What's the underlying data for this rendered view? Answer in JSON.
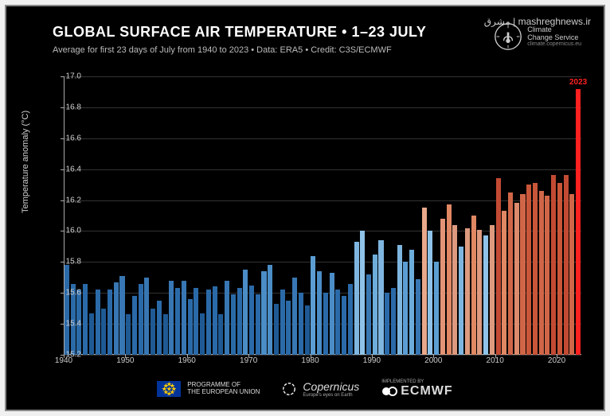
{
  "watermark": "مشرق | mashreghnews.ir",
  "header": {
    "title": "GLOBAL SURFACE AIR TEMPERATURE • 1–23 JULY",
    "subtitle": "Average for first 23 days of July from 1940 to 2023 • Data: ERA5 • Credit: C3S/ECMWF",
    "ccs_line1": "Climate",
    "ccs_line2": "Change Service",
    "ccs_sub": "climate.copernicus.eu"
  },
  "chart": {
    "type": "bar",
    "background_color": "#000000",
    "axis_color": "#aaaaaa",
    "grid_color": "#333333",
    "text_color": "#cccccc",
    "ylabel": "Temperature anomaly (°C)",
    "ylim": [
      15.2,
      17.0
    ],
    "yticks": [
      15.2,
      15.4,
      15.6,
      15.8,
      16.0,
      16.2,
      16.4,
      16.6,
      16.8,
      17.0
    ],
    "xlim": [
      1940,
      2024
    ],
    "xticks": [
      1940,
      1950,
      1960,
      1970,
      1980,
      1990,
      2000,
      2010,
      2020
    ],
    "bar_width_ratio": 0.78,
    "title_fontsize": 18,
    "label_fontsize": 11,
    "tick_fontsize": 10,
    "highlight": {
      "year": 2023,
      "label": "2023",
      "color": "#ff2020"
    },
    "years": [
      1940,
      1941,
      1942,
      1943,
      1944,
      1945,
      1946,
      1947,
      1948,
      1949,
      1950,
      1951,
      1952,
      1953,
      1954,
      1955,
      1956,
      1957,
      1958,
      1959,
      1960,
      1961,
      1962,
      1963,
      1964,
      1965,
      1966,
      1967,
      1968,
      1969,
      1970,
      1971,
      1972,
      1973,
      1974,
      1975,
      1976,
      1977,
      1978,
      1979,
      1980,
      1981,
      1982,
      1983,
      1984,
      1985,
      1986,
      1987,
      1988,
      1989,
      1990,
      1991,
      1992,
      1993,
      1994,
      1995,
      1996,
      1997,
      1998,
      1999,
      2000,
      2001,
      2002,
      2003,
      2004,
      2005,
      2006,
      2007,
      2008,
      2009,
      2010,
      2011,
      2012,
      2013,
      2014,
      2015,
      2016,
      2017,
      2018,
      2019,
      2020,
      2021,
      2022,
      2023
    ],
    "values": [
      15.78,
      15.66,
      15.62,
      15.66,
      15.47,
      15.62,
      15.5,
      15.62,
      15.67,
      15.71,
      15.46,
      15.58,
      15.66,
      15.7,
      15.5,
      15.55,
      15.46,
      15.68,
      15.63,
      15.68,
      15.56,
      15.63,
      15.47,
      15.62,
      15.64,
      15.46,
      15.68,
      15.59,
      15.63,
      15.75,
      15.65,
      15.59,
      15.74,
      15.78,
      15.53,
      15.62,
      15.55,
      15.7,
      15.6,
      15.52,
      15.84,
      15.74,
      15.6,
      15.73,
      15.62,
      15.58,
      15.66,
      15.93,
      16.0,
      15.72,
      15.85,
      15.94,
      15.6,
      15.63,
      15.91,
      15.8,
      15.88,
      15.69,
      16.15,
      16.0,
      15.8,
      16.08,
      16.17,
      16.04,
      15.9,
      16.02,
      16.1,
      16.01,
      15.97,
      16.04,
      16.34,
      16.13,
      16.25,
      16.18,
      16.24,
      16.3,
      16.31,
      16.26,
      16.23,
      16.36,
      16.31,
      16.36,
      16.24,
      16.92
    ],
    "colors": [
      "#2b6aa8",
      "#2b6aa8",
      "#2b6aa8",
      "#2b6aa8",
      "#1f5a94",
      "#2b6aa8",
      "#1f5a94",
      "#2b6aa8",
      "#3877b3",
      "#3877b3",
      "#1f5a94",
      "#2b6aa8",
      "#2b6aa8",
      "#3877b3",
      "#1f5a94",
      "#2b6aa8",
      "#1f5a94",
      "#3877b3",
      "#2b6aa8",
      "#3877b3",
      "#2b6aa8",
      "#2b6aa8",
      "#1f5a94",
      "#2b6aa8",
      "#2b6aa8",
      "#1f5a94",
      "#3877b3",
      "#2b6aa8",
      "#2b6aa8",
      "#4b8dc6",
      "#2b6aa8",
      "#2b6aa8",
      "#4b8dc6",
      "#4b8dc6",
      "#1f5a94",
      "#2b6aa8",
      "#2b6aa8",
      "#3877b3",
      "#2b6aa8",
      "#1f5a94",
      "#5c9ed4",
      "#4b8dc6",
      "#2b6aa8",
      "#4b8dc6",
      "#2b6aa8",
      "#2b6aa8",
      "#2b6aa8",
      "#7fb6e0",
      "#8fc2e8",
      "#3877b3",
      "#6caddb",
      "#7fb6e0",
      "#2b6aa8",
      "#2b6aa8",
      "#7fb6e0",
      "#5c9ed4",
      "#6caddb",
      "#3877b3",
      "#e9a88a",
      "#8fc2e8",
      "#5c9ed4",
      "#e39376",
      "#e08763",
      "#dd9a7f",
      "#7fb6e0",
      "#dd9a7f",
      "#e08763",
      "#dd9a7f",
      "#8fc2e8",
      "#dd9a7f",
      "#c24a33",
      "#e08763",
      "#d06648",
      "#dd8b6d",
      "#d06648",
      "#c95638",
      "#c95638",
      "#d06648",
      "#d06648",
      "#c24a33",
      "#c95638",
      "#c24a33",
      "#d06648",
      "#ff2020"
    ]
  },
  "footer": {
    "eu_line1": "PROGRAMME OF",
    "eu_line2": "THE EUROPEAN UNION",
    "copernicus": "Copernicus",
    "copernicus_sub": "Europe's eyes on Earth",
    "ecmwf_sub": "IMPLEMENTED BY",
    "ecmwf": "ECMWF"
  }
}
